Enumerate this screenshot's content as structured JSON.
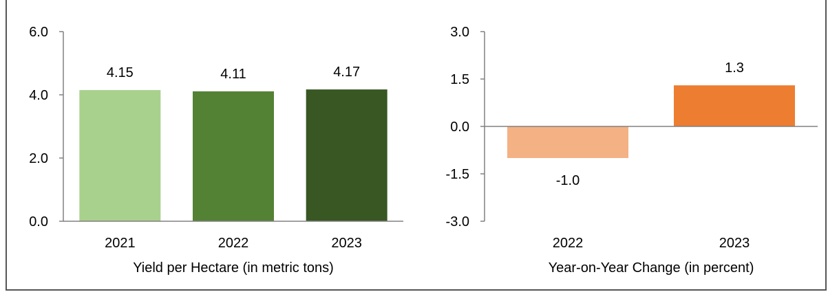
{
  "header": {
    "title_fragment": ""
  },
  "colors": {
    "yield_2021": "#a9d18e",
    "yield_2022": "#548235",
    "yield_2023": "#385723",
    "change_2022": "#f4b183",
    "change_2023": "#ed7d31",
    "axis": "#808080"
  },
  "chart_data": [
    {
      "type": "bar",
      "categories": [
        "2021",
        "2022",
        "2023"
      ],
      "values": [
        4.15,
        4.11,
        4.17
      ],
      "data_labels": [
        "4.15",
        "4.11",
        "4.17"
      ],
      "xlabel": "Yield per Hectare (in metric tons)",
      "ylabel": "",
      "ylim": [
        0,
        6
      ],
      "yticks": [
        "0.0",
        "2.0",
        "4.0",
        "6.0"
      ],
      "grid": false
    },
    {
      "type": "bar",
      "categories": [
        "2022",
        "2023"
      ],
      "values": [
        -1.0,
        1.3
      ],
      "data_labels": [
        "-1.0",
        "1.3"
      ],
      "xlabel": "Year-on-Year Change (in percent)",
      "ylabel": "",
      "ylim": [
        -3,
        3
      ],
      "yticks": [
        "-3.0",
        "-1.5",
        "0.0",
        "1.5",
        "3.0"
      ],
      "grid": false
    }
  ]
}
